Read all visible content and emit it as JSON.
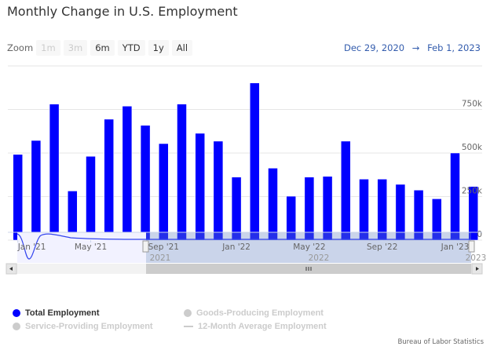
{
  "chart_data": {
    "type": "bar",
    "title": "Monthly Change in U.S. Employment",
    "categories": [
      "Jan 2021",
      "Feb 2021",
      "Mar 2021",
      "Apr 2021",
      "May 2021",
      "Jun 2021",
      "Jul 2021",
      "Aug 2021",
      "Sep 2021",
      "Oct 2021",
      "Nov 2021",
      "Dec 2021",
      "Jan 2022",
      "Feb 2022",
      "Mar 2022",
      "Apr 2022",
      "May 2022",
      "Jun 2022",
      "Jul 2022",
      "Aug 2022",
      "Sep 2022",
      "Oct 2022",
      "Nov 2022",
      "Dec 2022",
      "Jan 2023",
      "Feb 2023"
    ],
    "series": [
      {
        "name": "Total Employment",
        "color": "#0000ff",
        "values": [
          492000,
          572000,
          781000,
          282000,
          481000,
          694000,
          769000,
          659000,
          554000,
          781000,
          613000,
          568000,
          362000,
          902000,
          413000,
          252000,
          362000,
          366000,
          568000,
          350000,
          350000,
          320000,
          287000,
          237000,
          500000,
          308000
        ]
      }
    ],
    "x_tick_labels": [
      "Jan '21",
      "May '21",
      "Sep '21",
      "Jan '22",
      "May '22",
      "Sep '22",
      "Jan '23"
    ],
    "y_tick_labels": [
      "0",
      "250k",
      "500k",
      "750k"
    ],
    "ylim": [
      0,
      1000000
    ],
    "grid": true,
    "navigator_labels": [
      "2021",
      "2022",
      "2023"
    ]
  },
  "header": {
    "zoom_label": "Zoom",
    "zoom_buttons": [
      "1m",
      "3m",
      "6m",
      "YTD",
      "1y",
      "All"
    ],
    "range_from": "Dec 29, 2020",
    "range_arrow": "→",
    "range_to": "Feb 1, 2023"
  },
  "legend": [
    {
      "label": "Total Employment",
      "active": true,
      "color": "#0000ff"
    },
    {
      "label": "Goods-Producing Employment",
      "active": false,
      "color": "#cccccc"
    },
    {
      "label": "Service-Providing Employment",
      "active": false,
      "color": "#cccccc"
    },
    {
      "label": "12-Month Average Employment",
      "active": false,
      "color": "#cccccc"
    }
  ],
  "credit": "Bureau of Labor Statistics"
}
